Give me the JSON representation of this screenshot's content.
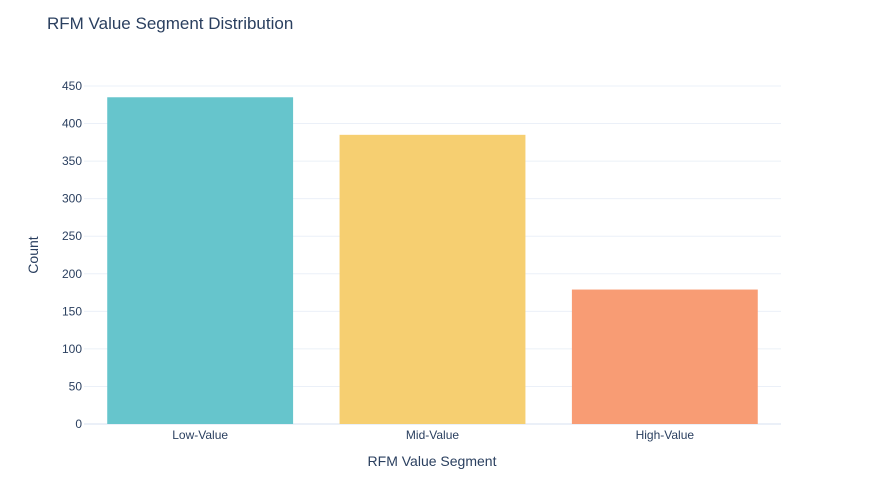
{
  "chart_data": {
    "type": "bar",
    "title": "RFM Value Segment Distribution",
    "xlabel": "RFM Value Segment",
    "ylabel": "Count",
    "categories": [
      "Low-Value",
      "Mid-Value",
      "High-Value"
    ],
    "values": [
      435,
      385,
      179
    ],
    "colors": [
      "#66c5cc",
      "#f6cf71",
      "#f89c74"
    ],
    "ylim": [
      0,
      450
    ],
    "yticks": [
      0,
      50,
      100,
      150,
      200,
      250,
      300,
      350,
      400,
      450
    ],
    "grid": true,
    "legend": "none"
  }
}
